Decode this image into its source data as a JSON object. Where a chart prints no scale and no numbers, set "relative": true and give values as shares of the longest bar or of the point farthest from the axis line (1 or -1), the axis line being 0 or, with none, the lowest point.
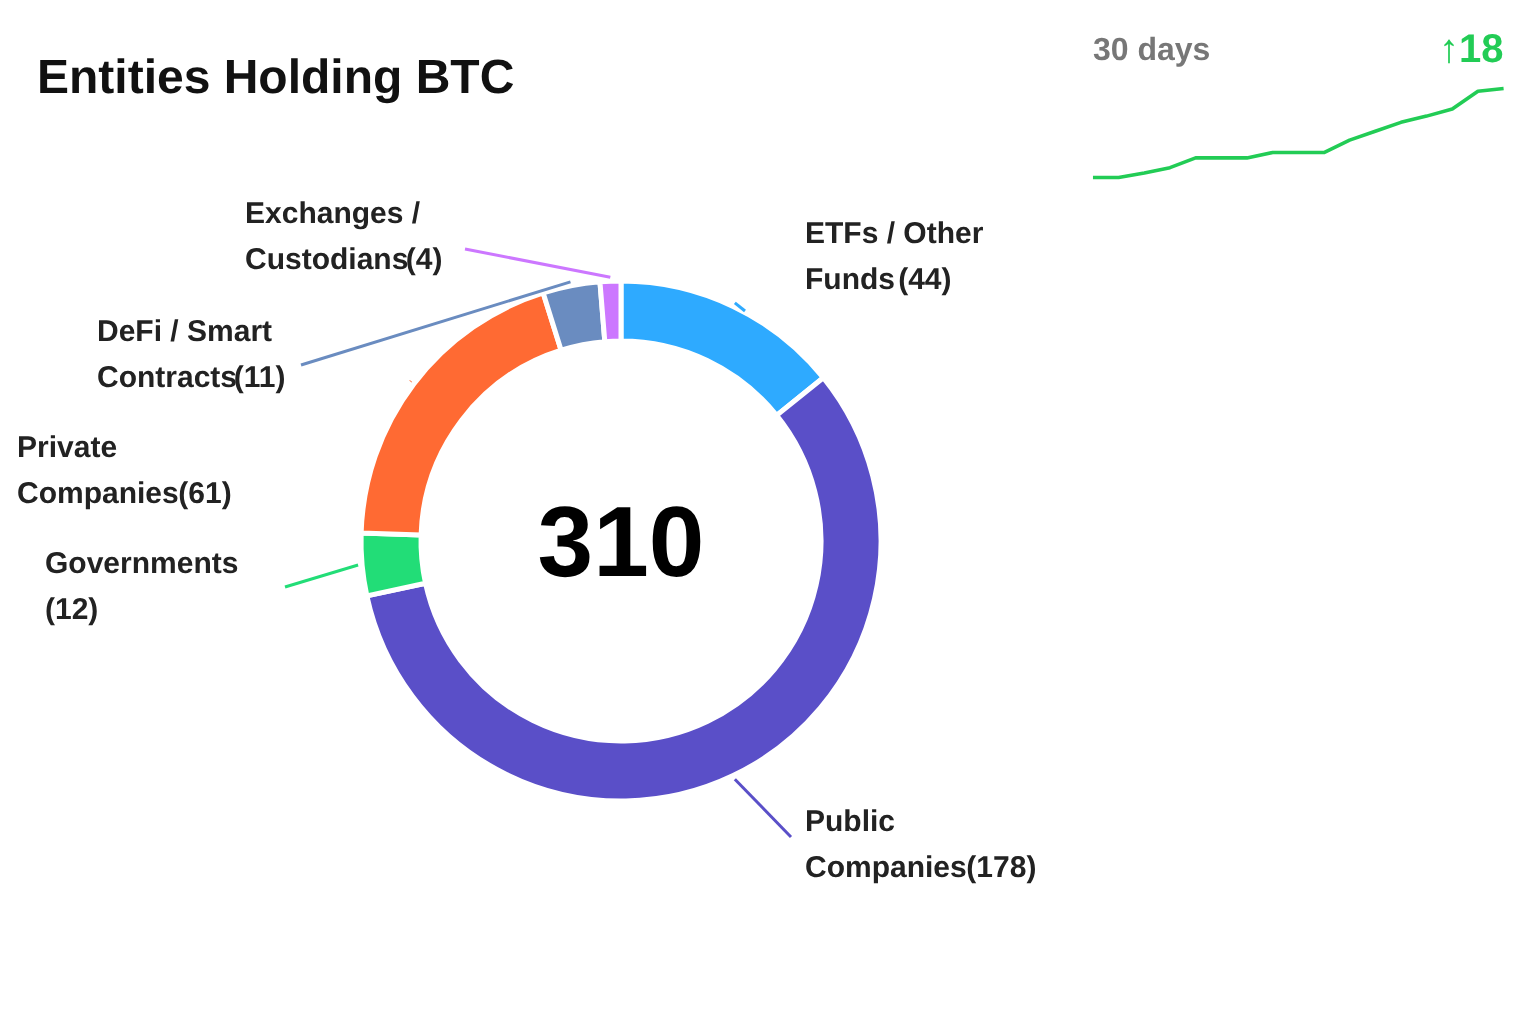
{
  "chart_data": [
    {
      "type": "donut",
      "title": "Entities Holding BTC",
      "categories": [
        "ETFs / Other\nFunds",
        "Public\nCompanies",
        "Governments",
        "Private\nCompanies",
        "DeFi / Smart\nContracts",
        "Exchanges /\nCustodians"
      ],
      "values": [
        44,
        178,
        12,
        61,
        11,
        4
      ],
      "colors": [
        "#2eaaff",
        "#5a4fc8",
        "#22dd77",
        "#ff6a33",
        "#6a8cc0",
        "#cc77ff"
      ],
      "value_labels": [
        "(44)",
        "(178)",
        "(12)",
        "(61)",
        "(11)",
        "(4)"
      ],
      "annotations": [
        "310"
      ]
    },
    {
      "type": "line",
      "title": "30 days",
      "relative": true,
      "color": "#22cc55",
      "categories": [
        null,
        null,
        null,
        null,
        null,
        null,
        null,
        null,
        null,
        null,
        null,
        null,
        null,
        null,
        null,
        null,
        null
      ],
      "values": [
        0,
        0,
        0.05,
        0.11,
        0.22,
        0.22,
        0.22,
        0.28,
        0.28,
        0.28,
        0.42,
        0.52,
        0.62,
        0.69,
        0.77,
        0.97,
        1
      ],
      "annotations": [
        "↑18"
      ]
    }
  ]
}
